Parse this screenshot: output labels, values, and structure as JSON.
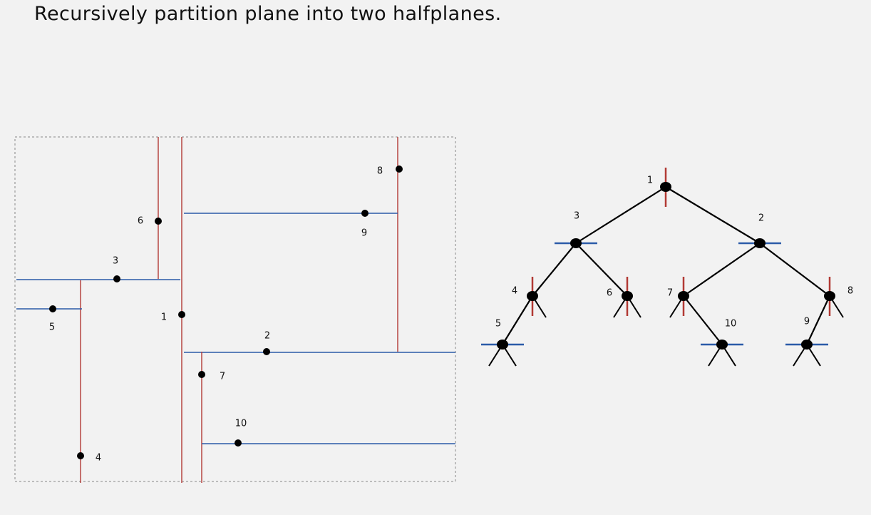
{
  "title": "Recursively partition plane into two halfplanes.",
  "colors": {
    "background": "#f2f2f2",
    "vertical_split": "#b23a35",
    "horizontal_split": "#2b5ba8",
    "point": "#000000",
    "tree_edge": "#000000",
    "frame": "#888888"
  },
  "points": [
    {
      "id": "1",
      "label": "1",
      "split": "vertical"
    },
    {
      "id": "2",
      "label": "2",
      "split": "horizontal"
    },
    {
      "id": "3",
      "label": "3",
      "split": "horizontal"
    },
    {
      "id": "4",
      "label": "4",
      "split": "vertical"
    },
    {
      "id": "5",
      "label": "5",
      "split": "horizontal"
    },
    {
      "id": "6",
      "label": "6",
      "split": "vertical"
    },
    {
      "id": "7",
      "label": "7",
      "split": "vertical"
    },
    {
      "id": "8",
      "label": "8",
      "split": "vertical"
    },
    {
      "id": "9",
      "label": "9",
      "split": "horizontal"
    },
    {
      "id": "10",
      "label": "10",
      "split": "horizontal"
    }
  ],
  "tree": {
    "nodes": [
      {
        "id": "1",
        "label": "1",
        "split": "vertical",
        "left": "3",
        "right": "2"
      },
      {
        "id": "3",
        "label": "3",
        "split": "horizontal",
        "left": "4",
        "right": "6"
      },
      {
        "id": "2",
        "label": "2",
        "split": "horizontal",
        "left": "7",
        "right": "8"
      },
      {
        "id": "4",
        "label": "4",
        "split": "vertical",
        "left": "5",
        "right": null
      },
      {
        "id": "6",
        "label": "6",
        "split": "vertical",
        "left": null,
        "right": null
      },
      {
        "id": "7",
        "label": "7",
        "split": "vertical",
        "left": null,
        "right": "10"
      },
      {
        "id": "8",
        "label": "8",
        "split": "vertical",
        "left": "9",
        "right": null
      },
      {
        "id": "5",
        "label": "5",
        "split": "horizontal",
        "left": null,
        "right": null
      },
      {
        "id": "10",
        "label": "10",
        "split": "horizontal",
        "left": null,
        "right": null
      },
      {
        "id": "9",
        "label": "9",
        "split": "horizontal",
        "left": null,
        "right": null
      }
    ]
  }
}
